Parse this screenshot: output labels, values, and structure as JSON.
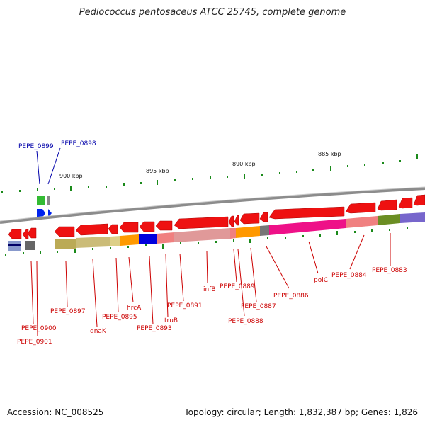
{
  "title": "Pediococcus pentosaceus ATCC 25745, complete genome",
  "footer": {
    "accession": "Accession: NC_008525",
    "summary": "Topology: circular; Length: 1,832,387 bp; Genes: 1,826"
  },
  "scale_labels": [
    "900 kbp",
    "895 kbp",
    "890 kbp",
    "885 kbp"
  ],
  "genes_top": [
    "PEPE_0899",
    "PEPE_0898"
  ],
  "genes_bottom": [
    "PEPE_0897",
    "PEPE_0900",
    "PEPE_0901",
    "dnaK",
    "PEPE_0895",
    "hrcA",
    "PEPE_0893",
    "truB",
    "PEPE_0891",
    "infB",
    "PEPE_0889",
    "PEPE_0888",
    "PEPE_0887",
    "PEPE_0886",
    "polC",
    "PEPE_0884",
    "PEPE_0883"
  ],
  "colors": {
    "gene": "#ee1111",
    "label_top": "#0000aa",
    "label_bottom": "#cc0000",
    "tick": "#1a8a1a",
    "backbone": "#8c8c8c"
  }
}
